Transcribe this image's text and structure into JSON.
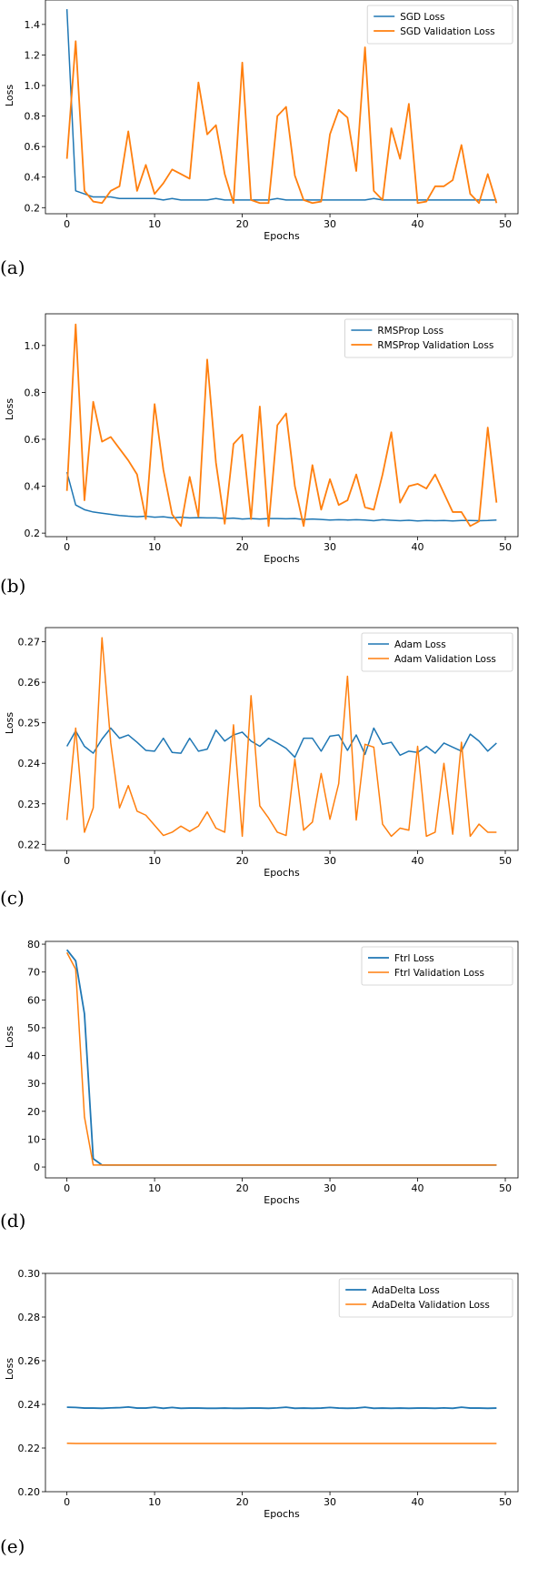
{
  "panels": [
    {
      "caption": "(a)"
    },
    {
      "caption": "(b)"
    },
    {
      "caption": "(c)"
    },
    {
      "caption": "(d)"
    },
    {
      "caption": "(e)"
    }
  ],
  "colors": {
    "train": "#1f77b4",
    "validation": "#ff7f0e"
  },
  "chart_data": [
    {
      "type": "line",
      "xlabel": "Epochs",
      "ylabel": "Loss",
      "xlim": [
        -2.45,
        51.45
      ],
      "ylim": [
        0.16,
        1.56
      ],
      "xticks": [
        0,
        10,
        20,
        30,
        40,
        50
      ],
      "yticks": [
        0.2,
        0.4,
        0.6,
        0.8,
        1.0,
        1.2,
        1.4
      ],
      "ytick_labels": [
        "0.2",
        "0.4",
        "0.6",
        "0.8",
        "1.0",
        "1.2",
        "1.4"
      ],
      "legend_position": "top-right",
      "x": [
        0,
        1,
        2,
        3,
        4,
        5,
        6,
        7,
        8,
        9,
        10,
        11,
        12,
        13,
        14,
        15,
        16,
        17,
        18,
        19,
        20,
        21,
        22,
        23,
        24,
        25,
        26,
        27,
        28,
        29,
        30,
        31,
        32,
        33,
        34,
        35,
        36,
        37,
        38,
        39,
        40,
        41,
        42,
        43,
        44,
        45,
        46,
        47,
        48,
        49
      ],
      "series": [
        {
          "name": "SGD Loss",
          "color": "#1f77b4",
          "width": 1.5,
          "values": [
            1.5,
            0.31,
            0.29,
            0.27,
            0.27,
            0.27,
            0.26,
            0.26,
            0.26,
            0.26,
            0.26,
            0.25,
            0.26,
            0.25,
            0.25,
            0.25,
            0.25,
            0.26,
            0.25,
            0.25,
            0.25,
            0.25,
            0.25,
            0.25,
            0.26,
            0.25,
            0.25,
            0.25,
            0.25,
            0.25,
            0.25,
            0.25,
            0.25,
            0.25,
            0.25,
            0.26,
            0.25,
            0.25,
            0.25,
            0.25,
            0.25,
            0.25,
            0.25,
            0.25,
            0.25,
            0.25,
            0.25,
            0.25,
            0.25,
            0.25
          ]
        },
        {
          "name": "SGD Validation Loss",
          "color": "#ff7f0e",
          "width": 1.8,
          "values": [
            0.52,
            1.29,
            0.31,
            0.24,
            0.23,
            0.31,
            0.34,
            0.7,
            0.31,
            0.48,
            0.29,
            0.36,
            0.45,
            0.42,
            0.39,
            1.02,
            0.68,
            0.74,
            0.42,
            0.23,
            1.15,
            0.25,
            0.23,
            0.23,
            0.8,
            0.86,
            0.41,
            0.25,
            0.23,
            0.24,
            0.68,
            0.84,
            0.79,
            0.44,
            1.25,
            0.31,
            0.25,
            0.72,
            0.52,
            0.88,
            0.23,
            0.24,
            0.34,
            0.34,
            0.38,
            0.61,
            0.29,
            0.23,
            0.42,
            0.23
          ]
        }
      ]
    },
    {
      "type": "line",
      "xlabel": "Epochs",
      "ylabel": "Loss",
      "xlim": [
        -2.45,
        51.45
      ],
      "ylim": [
        0.185,
        1.135
      ],
      "xticks": [
        0,
        10,
        20,
        30,
        40,
        50
      ],
      "yticks": [
        0.2,
        0.4,
        0.6,
        0.8,
        1.0
      ],
      "ytick_labels": [
        "0.2",
        "0.4",
        "0.6",
        "0.8",
        "1.0"
      ],
      "legend_position": "top-right",
      "x": [
        0,
        1,
        2,
        3,
        4,
        5,
        6,
        7,
        8,
        9,
        10,
        11,
        12,
        13,
        14,
        15,
        16,
        17,
        18,
        19,
        20,
        21,
        22,
        23,
        24,
        25,
        26,
        27,
        28,
        29,
        30,
        31,
        32,
        33,
        34,
        35,
        36,
        37,
        38,
        39,
        40,
        41,
        42,
        43,
        44,
        45,
        46,
        47,
        48,
        49
      ],
      "series": [
        {
          "name": "RMSProp Loss",
          "color": "#1f77b4",
          "width": 1.5,
          "values": [
            0.46,
            0.32,
            0.3,
            0.29,
            0.285,
            0.28,
            0.275,
            0.272,
            0.27,
            0.272,
            0.268,
            0.27,
            0.265,
            0.268,
            0.265,
            0.266,
            0.265,
            0.265,
            0.262,
            0.264,
            0.26,
            0.262,
            0.26,
            0.262,
            0.262,
            0.261,
            0.262,
            0.258,
            0.26,
            0.258,
            0.256,
            0.257,
            0.256,
            0.257,
            0.256,
            0.253,
            0.257,
            0.255,
            0.253,
            0.255,
            0.252,
            0.254,
            0.253,
            0.254,
            0.252,
            0.254,
            0.254,
            0.253,
            0.254,
            0.256
          ]
        },
        {
          "name": "RMSProp Validation Loss",
          "color": "#ff7f0e",
          "width": 1.8,
          "values": [
            0.38,
            1.09,
            0.34,
            0.76,
            0.59,
            0.61,
            0.56,
            0.51,
            0.45,
            0.26,
            0.75,
            0.47,
            0.28,
            0.23,
            0.44,
            0.27,
            0.94,
            0.5,
            0.24,
            0.58,
            0.62,
            0.26,
            0.74,
            0.23,
            0.66,
            0.71,
            0.4,
            0.23,
            0.49,
            0.3,
            0.43,
            0.32,
            0.34,
            0.45,
            0.31,
            0.3,
            0.45,
            0.63,
            0.33,
            0.4,
            0.41,
            0.39,
            0.45,
            0.37,
            0.29,
            0.29,
            0.23,
            0.25,
            0.65,
            0.33
          ]
        }
      ]
    },
    {
      "type": "line",
      "xlabel": "Epochs",
      "ylabel": "Loss",
      "xlim": [
        -2.45,
        51.45
      ],
      "ylim": [
        0.2185,
        0.2735
      ],
      "xticks": [
        0,
        10,
        20,
        30,
        40,
        50
      ],
      "yticks": [
        0.22,
        0.23,
        0.24,
        0.25,
        0.26,
        0.27
      ],
      "ytick_labels": [
        "0.22",
        "0.23",
        "0.24",
        "0.25",
        "0.26",
        "0.27"
      ],
      "legend_position": "top-right",
      "x": [
        0,
        1,
        2,
        3,
        4,
        5,
        6,
        7,
        8,
        9,
        10,
        11,
        12,
        13,
        14,
        15,
        16,
        17,
        18,
        19,
        20,
        21,
        22,
        23,
        24,
        25,
        26,
        27,
        28,
        29,
        30,
        31,
        32,
        33,
        34,
        35,
        36,
        37,
        38,
        39,
        40,
        41,
        42,
        43,
        44,
        45,
        46,
        47,
        48,
        49
      ],
      "series": [
        {
          "name": "Adam Loss",
          "color": "#1f77b4",
          "width": 1.5,
          "values": [
            0.2442,
            0.248,
            0.2442,
            0.2425,
            0.246,
            0.2487,
            0.2462,
            0.247,
            0.2452,
            0.2432,
            0.243,
            0.2462,
            0.2427,
            0.2425,
            0.2462,
            0.243,
            0.2435,
            0.2482,
            0.2455,
            0.247,
            0.2477,
            0.2455,
            0.2442,
            0.2462,
            0.245,
            0.2437,
            0.2415,
            0.2462,
            0.2462,
            0.243,
            0.2467,
            0.247,
            0.2432,
            0.247,
            0.2422,
            0.2487,
            0.2447,
            0.2452,
            0.242,
            0.243,
            0.2427,
            0.2442,
            0.2425,
            0.245,
            0.244,
            0.243,
            0.2472,
            0.2455,
            0.243,
            0.245
          ]
        },
        {
          "name": "Adam Validation Loss",
          "color": "#ff7f0e",
          "width": 1.5,
          "values": [
            0.226,
            0.2487,
            0.223,
            0.229,
            0.271,
            0.245,
            0.229,
            0.2345,
            0.2282,
            0.2272,
            0.2247,
            0.2222,
            0.223,
            0.2245,
            0.2232,
            0.2245,
            0.228,
            0.224,
            0.223,
            0.2495,
            0.222,
            0.2567,
            0.2295,
            0.2265,
            0.223,
            0.2222,
            0.241,
            0.2235,
            0.2255,
            0.2375,
            0.2262,
            0.235,
            0.2615,
            0.226,
            0.2447,
            0.244,
            0.225,
            0.222,
            0.224,
            0.2235,
            0.2442,
            0.222,
            0.223,
            0.24,
            0.2225,
            0.2452,
            0.222,
            0.225,
            0.223,
            0.223
          ]
        }
      ]
    },
    {
      "type": "line",
      "xlabel": "Epochs",
      "ylabel": "Loss",
      "xlim": [
        -2.45,
        51.45
      ],
      "ylim": [
        -3.9,
        81.0
      ],
      "xticks": [
        0,
        10,
        20,
        30,
        40,
        50
      ],
      "yticks": [
        0,
        10,
        20,
        30,
        40,
        50,
        60,
        70,
        80
      ],
      "ytick_labels": [
        "0",
        "10",
        "20",
        "30",
        "40",
        "50",
        "60",
        "70",
        "80"
      ],
      "legend_position": "top-right",
      "x": [
        0,
        1,
        2,
        3,
        4,
        5,
        6,
        7,
        8,
        9,
        10,
        11,
        12,
        13,
        14,
        15,
        16,
        17,
        18,
        19,
        20,
        21,
        22,
        23,
        24,
        25,
        26,
        27,
        28,
        29,
        30,
        31,
        32,
        33,
        34,
        35,
        36,
        37,
        38,
        39,
        40,
        41,
        42,
        43,
        44,
        45,
        46,
        47,
        48,
        49
      ],
      "series": [
        {
          "name": "Ftrl Loss",
          "color": "#1f77b4",
          "width": 1.8,
          "values": [
            78.0,
            74.0,
            55.0,
            3.0,
            0.7,
            0.7,
            0.7,
            0.7,
            0.7,
            0.7,
            0.7,
            0.7,
            0.7,
            0.7,
            0.7,
            0.7,
            0.7,
            0.7,
            0.7,
            0.7,
            0.7,
            0.7,
            0.7,
            0.7,
            0.7,
            0.7,
            0.7,
            0.7,
            0.7,
            0.7,
            0.7,
            0.7,
            0.7,
            0.7,
            0.7,
            0.7,
            0.7,
            0.7,
            0.7,
            0.7,
            0.7,
            0.7,
            0.7,
            0.7,
            0.7,
            0.7,
            0.7,
            0.7,
            0.7,
            0.7
          ]
        },
        {
          "name": "Ftrl Validation Loss",
          "color": "#ff7f0e",
          "width": 1.5,
          "values": [
            77.0,
            71.0,
            18.0,
            0.7,
            0.7,
            0.7,
            0.7,
            0.7,
            0.7,
            0.7,
            0.7,
            0.7,
            0.7,
            0.7,
            0.7,
            0.7,
            0.7,
            0.7,
            0.7,
            0.7,
            0.7,
            0.7,
            0.7,
            0.7,
            0.7,
            0.7,
            0.7,
            0.7,
            0.7,
            0.7,
            0.7,
            0.7,
            0.7,
            0.7,
            0.7,
            0.7,
            0.7,
            0.7,
            0.7,
            0.7,
            0.7,
            0.7,
            0.7,
            0.7,
            0.7,
            0.7,
            0.7,
            0.7,
            0.7,
            0.7
          ]
        }
      ]
    },
    {
      "type": "line",
      "xlabel": "Epochs",
      "ylabel": "Loss",
      "xlim": [
        -2.45,
        51.45
      ],
      "ylim": [
        0.2,
        0.3
      ],
      "xticks": [
        0,
        10,
        20,
        30,
        40,
        50
      ],
      "yticks": [
        0.2,
        0.22,
        0.24,
        0.26,
        0.28,
        0.3
      ],
      "ytick_labels": [
        "0.20",
        "0.22",
        "0.24",
        "0.26",
        "0.28",
        "0.30"
      ],
      "legend_position": "top-right",
      "x": [
        0,
        1,
        2,
        3,
        4,
        5,
        6,
        7,
        8,
        9,
        10,
        11,
        12,
        13,
        14,
        15,
        16,
        17,
        18,
        19,
        20,
        21,
        22,
        23,
        24,
        25,
        26,
        27,
        28,
        29,
        30,
        31,
        32,
        33,
        34,
        35,
        36,
        37,
        38,
        39,
        40,
        41,
        42,
        43,
        44,
        45,
        46,
        47,
        48,
        49
      ],
      "series": [
        {
          "name": "AdaDelta Loss",
          "color": "#1f77b4",
          "width": 1.8,
          "values": [
            0.2387,
            0.2386,
            0.2383,
            0.2383,
            0.2382,
            0.2384,
            0.2385,
            0.2388,
            0.2383,
            0.2383,
            0.2387,
            0.2382,
            0.2386,
            0.2382,
            0.2383,
            0.2383,
            0.2382,
            0.2382,
            0.2383,
            0.2382,
            0.2382,
            0.2383,
            0.2383,
            0.2382,
            0.2384,
            0.2387,
            0.2382,
            0.2383,
            0.2382,
            0.2383,
            0.2386,
            0.2383,
            0.2382,
            0.2383,
            0.2387,
            0.2382,
            0.2383,
            0.2382,
            0.2383,
            0.2382,
            0.2383,
            0.2383,
            0.2382,
            0.2384,
            0.2382,
            0.2387,
            0.2383,
            0.2383,
            0.2382,
            0.2383
          ]
        },
        {
          "name": "AdaDelta Validation Loss",
          "color": "#ff7f0e",
          "width": 1.5,
          "values": [
            0.2222,
            0.2221,
            0.2221,
            0.2221,
            0.2221,
            0.2221,
            0.2221,
            0.2221,
            0.2221,
            0.2221,
            0.2221,
            0.2221,
            0.2221,
            0.2221,
            0.2221,
            0.2221,
            0.2221,
            0.2221,
            0.2221,
            0.2221,
            0.2221,
            0.2221,
            0.2221,
            0.2221,
            0.2221,
            0.2221,
            0.2221,
            0.2221,
            0.2221,
            0.2221,
            0.2221,
            0.2221,
            0.2221,
            0.2221,
            0.2221,
            0.2221,
            0.2221,
            0.2221,
            0.2221,
            0.2221,
            0.2221,
            0.2221,
            0.2221,
            0.2221,
            0.2221,
            0.2221,
            0.2221,
            0.2221,
            0.2221,
            0.2221
          ]
        }
      ]
    }
  ]
}
